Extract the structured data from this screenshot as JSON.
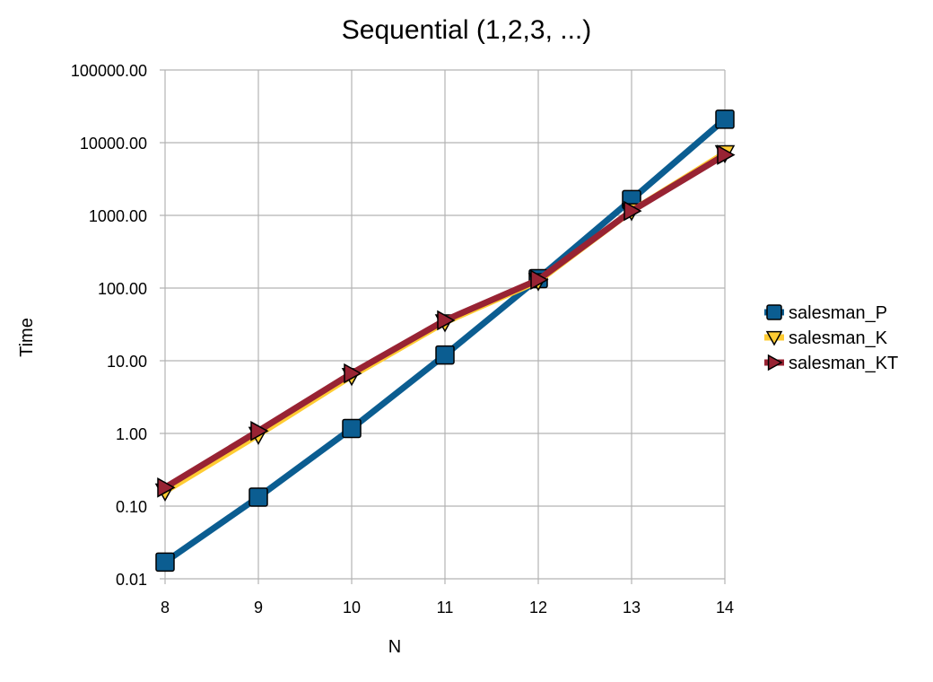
{
  "chart_data": {
    "type": "line",
    "title": "Sequential (1,2,3, ...)",
    "xlabel": "N",
    "ylabel": "Time",
    "x": [
      8,
      9,
      10,
      11,
      12,
      13,
      14
    ],
    "x_tick_labels": [
      "8",
      "9",
      "10",
      "11",
      "12",
      "13",
      "14"
    ],
    "y_scale": "log",
    "ylim": [
      0.01,
      100000
    ],
    "y_ticks": [
      0.01,
      0.1,
      1,
      10,
      100,
      1000,
      10000,
      100000
    ],
    "y_tick_labels": [
      "0.01",
      "0.10",
      "1.00",
      "10.00",
      "100.00",
      "1000.00",
      "10000.00",
      "100000.00"
    ],
    "grid": true,
    "legend_position": "right",
    "series": [
      {
        "name": "salesman_P",
        "color": "#0b5d91",
        "marker": "square",
        "values": [
          0.017,
          0.133,
          1.17,
          12.0,
          135,
          1650,
          21000
        ]
      },
      {
        "name": "salesman_K",
        "color": "#ffcc33",
        "marker": "triangle-down",
        "values": [
          0.16,
          0.96,
          6.2,
          34,
          125,
          1150,
          7200
        ]
      },
      {
        "name": "salesman_KT",
        "color": "#982333",
        "marker": "triangle-right",
        "values": [
          0.18,
          1.08,
          6.7,
          36,
          130,
          1150,
          6800
        ]
      }
    ]
  }
}
